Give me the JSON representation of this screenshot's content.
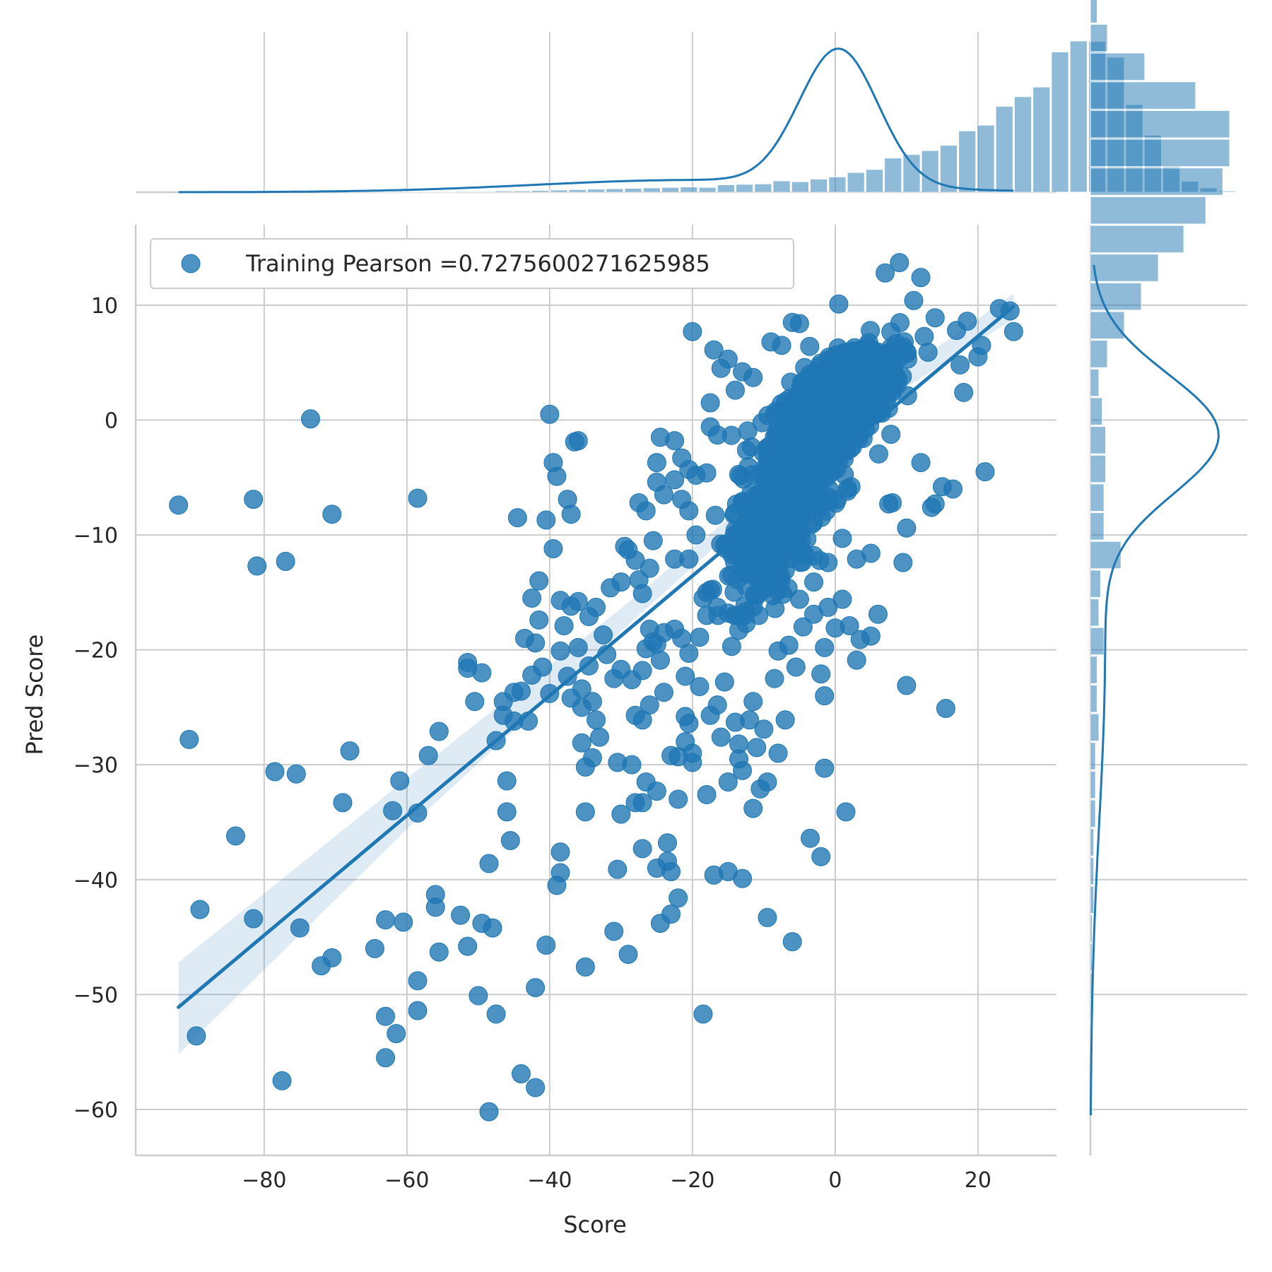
{
  "chart_data": {
    "type": "scatter",
    "xlabel": "Score",
    "ylabel": "Pred Score",
    "xlim": [
      -98,
      31
    ],
    "ylim": [
      -64,
      17
    ],
    "x_ticks": [
      -80,
      -60,
      -40,
      -20,
      0,
      20
    ],
    "x_tick_labels": [
      "−80",
      "−60",
      "−40",
      "−20",
      "0",
      "20"
    ],
    "y_ticks": [
      10,
      0,
      -10,
      -20,
      -30,
      -40,
      -50,
      -60
    ],
    "y_tick_labels": [
      "10",
      "0",
      "−10",
      "−20",
      "−30",
      "−40",
      "−50",
      "−60"
    ],
    "grid": true,
    "color": "#1f77b4",
    "legend": {
      "label": "Training Pearson =0.7275600271625985",
      "placement": "top-left"
    },
    "regression": {
      "x_start": -92,
      "y_start": -51.1,
      "x_end": 25,
      "y_end": 9.9,
      "ci_band": [
        {
          "x": -92,
          "lo": -55.2,
          "hi": -47.2
        },
        {
          "x": -60,
          "lo": -35.6,
          "hi": -31.2
        },
        {
          "x": -30,
          "lo": -18.4,
          "hi": -16.4
        },
        {
          "x": -10,
          "lo": -7.2,
          "hi": -6.0
        },
        {
          "x": 5,
          "lo": 0.9,
          "hi": 2.3
        },
        {
          "x": 25,
          "lo": 8.8,
          "hi": 11.0
        }
      ]
    },
    "points": [
      [
        -92,
        -7.4
      ],
      [
        -81.5,
        -6.9
      ],
      [
        -81,
        -12.7
      ],
      [
        -77,
        -12.3
      ],
      [
        -73.5,
        0.1
      ],
      [
        -70.5,
        -8.2
      ],
      [
        -58.5,
        -6.8
      ],
      [
        -90.5,
        -27.8
      ],
      [
        -89.5,
        -53.6
      ],
      [
        -89,
        -42.6
      ],
      [
        -84,
        -36.2
      ],
      [
        -81.5,
        -43.4
      ],
      [
        -78.5,
        -30.6
      ],
      [
        -77.5,
        -57.5
      ],
      [
        -75.5,
        -30.8
      ],
      [
        -75,
        -44.2
      ],
      [
        -72,
        -47.5
      ],
      [
        -70.5,
        -46.8
      ],
      [
        -69,
        -33.3
      ],
      [
        -68,
        -28.8
      ],
      [
        -64.5,
        -46
      ],
      [
        -63,
        -51.9
      ],
      [
        -63,
        -55.5
      ],
      [
        -63,
        -43.5
      ],
      [
        -61.5,
        -53.4
      ],
      [
        -61,
        -31.4
      ],
      [
        -60.5,
        -43.7
      ],
      [
        -62,
        -34
      ],
      [
        -58.5,
        -34.2
      ],
      [
        -58.5,
        -48.8
      ],
      [
        -58.5,
        -51.4
      ],
      [
        -57,
        -29.2
      ],
      [
        -56,
        -41.3
      ],
      [
        -56,
        -42.4
      ],
      [
        -55.5,
        -46.3
      ],
      [
        -55.5,
        -27.1
      ],
      [
        -52.5,
        -43.1
      ],
      [
        -51.5,
        -45.8
      ],
      [
        -51.5,
        -21.1
      ],
      [
        -51.5,
        -21.6
      ],
      [
        -50.5,
        -24.5
      ],
      [
        -50,
        -50.1
      ],
      [
        -49.5,
        -22.0
      ],
      [
        -49.5,
        -43.8
      ],
      [
        -48.5,
        -38.6
      ],
      [
        -48.5,
        -60.2
      ],
      [
        -48,
        -44.2
      ],
      [
        -47.5,
        -51.7
      ],
      [
        -47.5,
        -27.9
      ],
      [
        -46.5,
        -24.5
      ],
      [
        -46.5,
        -25.7
      ],
      [
        -46,
        -31.4
      ],
      [
        -46,
        -34.1
      ],
      [
        -45.5,
        -36.6
      ],
      [
        -45,
        -26.2
      ],
      [
        -45,
        -23.7
      ],
      [
        -44.5,
        -8.5
      ],
      [
        -44,
        -23.6
      ],
      [
        -44,
        -56.9
      ],
      [
        -43.5,
        -19
      ],
      [
        -43,
        -26.2
      ],
      [
        -42.5,
        -22.2
      ],
      [
        -42.5,
        -15.5
      ],
      [
        -42,
        -58.1
      ],
      [
        -42,
        -19.4
      ],
      [
        -42,
        -49.4
      ],
      [
        -41.5,
        -14
      ],
      [
        -41.5,
        -17.4
      ],
      [
        -41,
        -21.5
      ],
      [
        -40.5,
        -8.7
      ],
      [
        -40.5,
        -45.7
      ],
      [
        -40,
        -23.8
      ],
      [
        -40,
        0.5
      ],
      [
        -39.5,
        -11.2
      ],
      [
        -39.5,
        -3.7
      ],
      [
        -39,
        -4.9
      ],
      [
        -39,
        -40.5
      ],
      [
        -38.5,
        -15.7
      ],
      [
        -38.5,
        -20.1
      ],
      [
        -38.5,
        -37.6
      ],
      [
        -38.5,
        -39.4
      ],
      [
        -38,
        -17.9
      ],
      [
        -37.5,
        -6.9
      ],
      [
        -37.5,
        -22.3
      ],
      [
        -37,
        -8.2
      ],
      [
        -37,
        -16.2
      ],
      [
        -37,
        -24.2
      ],
      [
        -36.5,
        -1.9
      ],
      [
        -36,
        -1.8
      ],
      [
        -36,
        -15.8
      ],
      [
        -36,
        -19.8
      ],
      [
        -35.5,
        -23.4
      ],
      [
        -35.5,
        -25
      ],
      [
        -35.5,
        -28.1
      ],
      [
        -35,
        -30.2
      ],
      [
        -35,
        -34.1
      ],
      [
        -35,
        -47.6
      ],
      [
        -34.5,
        -17.1
      ],
      [
        -34.5,
        -21.4
      ],
      [
        -34,
        -24.5
      ],
      [
        -34,
        -29.4
      ],
      [
        -33.5,
        -16.3
      ],
      [
        -33.5,
        -26.1
      ],
      [
        -33,
        -27.6
      ],
      [
        -32.5,
        -18.7
      ],
      [
        -32,
        -20.4
      ],
      [
        -31.5,
        -14.6
      ],
      [
        -31,
        -44.5
      ],
      [
        -31,
        -22.5
      ],
      [
        -30.5,
        -29.8
      ],
      [
        -30.5,
        -39.1
      ],
      [
        -30,
        -21.7
      ],
      [
        -30,
        -34.3
      ],
      [
        -30,
        -14.1
      ],
      [
        -29.5,
        -11
      ],
      [
        -29,
        -11.3
      ],
      [
        -29,
        -46.5
      ],
      [
        -28.5,
        -22.6
      ],
      [
        -28.5,
        -30
      ],
      [
        -28,
        -25.7
      ],
      [
        -28,
        -33.3
      ],
      [
        -28,
        -12.2
      ],
      [
        -27.5,
        -7.2
      ],
      [
        -27.5,
        -13.9
      ],
      [
        -27,
        -15.1
      ],
      [
        -27,
        -21.8
      ],
      [
        -27,
        -26.1
      ],
      [
        -27,
        -33.3
      ],
      [
        -27,
        -37.3
      ],
      [
        -26.5,
        -7.9
      ],
      [
        -26.5,
        -19.9
      ],
      [
        -26.5,
        -31.5
      ],
      [
        -26,
        -12.9
      ],
      [
        -26,
        -18.2
      ],
      [
        -26,
        -24.8
      ],
      [
        -25.5,
        -10.5
      ],
      [
        -25.5,
        -19.3
      ],
      [
        -25,
        -3.7
      ],
      [
        -25,
        -5.4
      ],
      [
        -25,
        -19.5
      ],
      [
        -25,
        -32.3
      ],
      [
        -25,
        -39
      ],
      [
        -24.5,
        -1.5
      ],
      [
        -24.5,
        -20.9
      ],
      [
        -24.5,
        -43.8
      ],
      [
        -24,
        -6.5
      ],
      [
        -24,
        -18.5
      ],
      [
        -24,
        -23.7
      ],
      [
        -23.5,
        -36.8
      ],
      [
        -23.5,
        -38.4
      ],
      [
        -23,
        -29.2
      ],
      [
        -23,
        -39.3
      ],
      [
        -23,
        -43
      ],
      [
        -22.5,
        -1.8
      ],
      [
        -22.5,
        -5.2
      ],
      [
        -22.5,
        -12.1
      ],
      [
        -22.5,
        -18.2
      ],
      [
        -22,
        -41.6
      ],
      [
        -22,
        -29.3
      ],
      [
        -22,
        -33
      ],
      [
        -21.5,
        -3.3
      ],
      [
        -21.5,
        -6.9
      ],
      [
        -21.5,
        -19
      ],
      [
        -21,
        -22.3
      ],
      [
        -21,
        -25.8
      ],
      [
        -21,
        -28
      ],
      [
        -20.5,
        -4.3
      ],
      [
        -20.5,
        -7.9
      ],
      [
        -20.5,
        -12.1
      ],
      [
        -20.5,
        -20.3
      ],
      [
        -20.5,
        -26.4
      ],
      [
        -20,
        -29
      ],
      [
        -20,
        -29.8
      ],
      [
        -20,
        7.7
      ],
      [
        -19.5,
        -4.8
      ],
      [
        -19.5,
        -10
      ],
      [
        -19,
        -18.9
      ],
      [
        -19,
        -23.2
      ],
      [
        -18.5,
        -51.7
      ],
      [
        -18.5,
        -15.5
      ],
      [
        -18,
        -4.6
      ],
      [
        -18,
        -32.6
      ],
      [
        -17.5,
        -0.6
      ],
      [
        -17.5,
        1.5
      ],
      [
        -17.5,
        -14.8
      ],
      [
        -17.5,
        -25.7
      ],
      [
        -17,
        -39.6
      ],
      [
        -17,
        6.1
      ],
      [
        -16.5,
        -1.3
      ],
      [
        -16.5,
        -16.3
      ],
      [
        -16.5,
        -24.8
      ],
      [
        -16,
        -27.6
      ],
      [
        -16,
        4.5
      ],
      [
        -15.5,
        -22.8
      ],
      [
        -15.5,
        -10.9
      ],
      [
        -15,
        5.3
      ],
      [
        -15,
        -39.3
      ],
      [
        -15,
        -31.5
      ],
      [
        -14.5,
        -13.5
      ],
      [
        -14.5,
        -19.7
      ],
      [
        -14,
        2.6
      ],
      [
        -14,
        -26.3
      ],
      [
        -13.5,
        -28.2
      ],
      [
        -13.5,
        -29.5
      ],
      [
        -13.5,
        -18.3
      ],
      [
        -13,
        -39.9
      ],
      [
        -13,
        -30.5
      ],
      [
        -13,
        4.2
      ],
      [
        -12.5,
        -17.7
      ],
      [
        -12,
        -26.1
      ],
      [
        -11.5,
        -33.8
      ],
      [
        -11.5,
        -24.5
      ],
      [
        -11.5,
        3.7
      ],
      [
        -11,
        -28.5
      ],
      [
        -10.5,
        -32.1
      ],
      [
        -10,
        -26.9
      ],
      [
        -9.5,
        -43.3
      ],
      [
        -9.5,
        -31.5
      ],
      [
        -9,
        6.8
      ],
      [
        -8.5,
        -22.5
      ],
      [
        -8,
        -20.1
      ],
      [
        -8,
        -29
      ],
      [
        -7.5,
        6.5
      ],
      [
        -7,
        -26.1
      ],
      [
        -6.5,
        -19.6
      ],
      [
        -6,
        -45.4
      ],
      [
        -6,
        8.5
      ],
      [
        -5.5,
        -21.5
      ],
      [
        -5,
        8.4
      ],
      [
        -4.5,
        -18
      ],
      [
        -3.5,
        -36.4
      ],
      [
        -3,
        -14.1
      ],
      [
        -2,
        -22.1
      ],
      [
        -2,
        -38
      ],
      [
        -1.5,
        -30.3
      ],
      [
        -1.5,
        -24
      ],
      [
        -1.5,
        -19.8
      ],
      [
        -1,
        -16.3
      ],
      [
        0,
        -18.1
      ],
      [
        0.5,
        10.1
      ],
      [
        1,
        -15.6
      ],
      [
        1.5,
        -34.1
      ],
      [
        2,
        -17.9
      ],
      [
        3,
        -20.9
      ],
      [
        3.5,
        -19.1
      ],
      [
        5,
        -18.8
      ],
      [
        6,
        -16.9
      ],
      [
        7,
        12.8
      ],
      [
        7.5,
        -7.3
      ],
      [
        9,
        13.7
      ],
      [
        9.5,
        -12.4
      ],
      [
        10,
        -23.1
      ],
      [
        11,
        10.4
      ],
      [
        12,
        12.4
      ],
      [
        13,
        5.9
      ],
      [
        14,
        8.9
      ],
      [
        15.5,
        -25.1
      ],
      [
        16.5,
        -6
      ],
      [
        17,
        7.8
      ],
      [
        17.5,
        4.8
      ],
      [
        18,
        2.4
      ],
      [
        18.5,
        8.6
      ],
      [
        20,
        5.5
      ],
      [
        20.5,
        6.5
      ],
      [
        21,
        -4.5
      ],
      [
        23,
        9.7
      ],
      [
        24.5,
        9.5
      ],
      [
        25,
        7.7
      ],
      [
        15,
        -5.8
      ],
      [
        14,
        -7.3
      ],
      [
        13.5,
        -7.6
      ],
      [
        12,
        -3.7
      ],
      [
        10,
        -9.4
      ],
      [
        8,
        -7.2
      ],
      [
        5,
        -11.6
      ],
      [
        3,
        -12.1
      ],
      [
        1,
        -10.3
      ],
      [
        -1,
        -12.4
      ],
      [
        -3,
        -11.8
      ],
      [
        -5,
        -15.6
      ],
      [
        -7,
        -13.1
      ],
      [
        -9,
        -14.2
      ],
      [
        -11,
        -15.2
      ],
      [
        -13,
        -12.1
      ],
      [
        -15,
        -16.8
      ],
      [
        -3,
        -16.9
      ]
    ],
    "cluster_regions": [
      {
        "x_center": -2,
        "y_center": 0,
        "x_spread": 6,
        "y_spread": 3.5,
        "count": 500
      },
      {
        "x_center": 3,
        "y_center": 3,
        "x_spread": 5,
        "y_spread": 3,
        "count": 320
      },
      {
        "x_center": -6,
        "y_center": -6,
        "x_spread": 6,
        "y_spread": 4,
        "count": 220
      },
      {
        "x_center": -10,
        "y_center": -12,
        "x_spread": 5,
        "y_spread": 4,
        "count": 120
      }
    ],
    "top_histogram": {
      "bin_edges_start": -92,
      "bin_width": 2.6,
      "counts": [
        1,
        1,
        1,
        1,
        1,
        1,
        1,
        1,
        1,
        1,
        1,
        1,
        1,
        1,
        1,
        2,
        2,
        3,
        3,
        4,
        5,
        6,
        7,
        8,
        9,
        10,
        11,
        12,
        11,
        17,
        18,
        19,
        26,
        24,
        30,
        35,
        45,
        52,
        78,
        86,
        95,
        107,
        140,
        153,
        196,
        218,
        240,
        320,
        345,
        344,
        308,
        200,
        130,
        60,
        25,
        10,
        3
      ],
      "kde_peak_x": 0.5
    },
    "right_histogram": {
      "bin_edges_start": -60.5,
      "bin_width": 2.5,
      "counts": [
        1,
        1,
        1,
        1,
        1,
        1,
        1,
        2,
        2,
        2,
        3,
        3,
        3,
        5,
        4,
        4,
        8,
        5,
        6,
        18,
        8,
        8,
        9,
        9,
        7,
        5,
        10,
        20,
        30,
        40,
        55,
        68,
        78,
        82,
        82,
        62,
        32,
        10,
        4,
        3
      ],
      "kde_peak_y": -1.2
    }
  }
}
